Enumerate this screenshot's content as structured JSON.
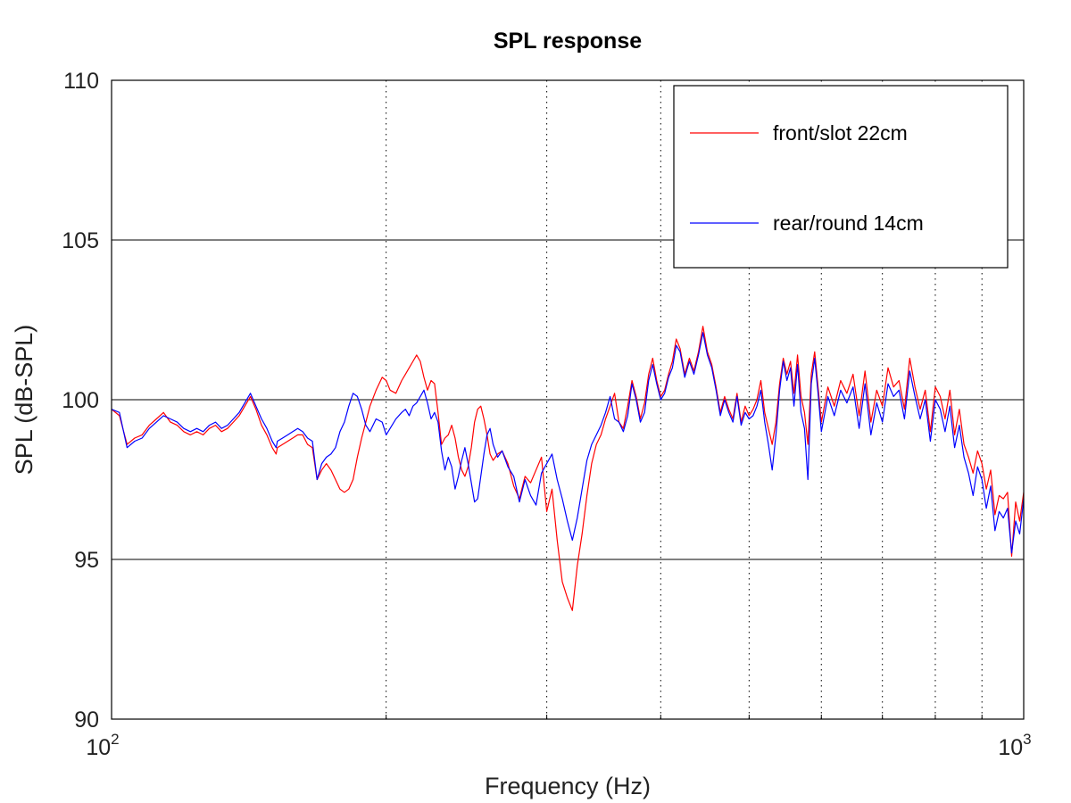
{
  "chart_data": {
    "type": "line",
    "title": "SPL response",
    "xlabel": "Frequency (Hz)",
    "ylabel": "SPL (dB-SPL)",
    "xscale": "log",
    "xlim": [
      100,
      1000
    ],
    "ylim": [
      90,
      110
    ],
    "x_ticks": [
      {
        "base": "10",
        "exp": "2"
      },
      {
        "base": "10",
        "exp": "3"
      }
    ],
    "y_ticks": [
      "90",
      "95",
      "100",
      "105",
      "110"
    ],
    "grid": {
      "y_major": "solid",
      "x_minor": "dotted"
    },
    "legend": "top-right",
    "series": [
      {
        "name": "front/slot 22cm",
        "color": "#ff0000",
        "x": [
          100,
          102,
          104,
          106,
          108,
          110,
          112,
          114,
          116,
          118,
          120,
          122,
          124,
          126,
          128,
          130,
          132,
          134,
          136,
          138,
          140,
          142,
          144,
          146,
          148,
          150,
          151.5,
          152,
          154,
          156,
          158,
          160,
          162,
          164,
          166,
          168,
          170,
          172,
          174,
          176,
          178,
          180,
          182,
          184,
          186,
          188,
          190,
          192,
          195,
          198,
          200,
          202,
          205,
          208,
          210,
          212,
          214,
          216,
          218,
          220,
          222,
          224,
          226,
          228,
          230,
          232,
          234,
          236,
          238,
          240,
          242,
          244,
          246,
          248,
          250,
          252,
          254,
          256,
          258,
          260,
          262,
          265,
          268,
          272,
          276,
          280,
          284,
          288,
          292,
          296,
          300,
          304,
          308,
          312,
          316,
          320,
          324,
          328,
          332,
          336,
          340,
          344,
          348,
          352,
          356,
          360,
          364,
          368,
          372,
          376,
          380,
          384,
          388,
          392,
          396,
          400,
          404,
          408,
          412,
          416,
          420,
          425,
          430,
          435,
          440,
          445,
          450,
          455,
          460,
          465,
          470,
          475,
          480,
          485,
          490,
          495,
          500,
          505,
          510,
          515,
          520,
          525,
          530,
          535,
          540,
          545,
          550,
          555,
          560,
          565,
          570,
          575,
          580,
          585,
          590,
          595,
          600,
          610,
          620,
          630,
          640,
          650,
          660,
          670,
          680,
          690,
          700,
          710,
          720,
          730,
          740,
          750,
          760,
          770,
          780,
          790,
          800,
          810,
          820,
          830,
          840,
          850,
          860,
          870,
          880,
          890,
          900,
          910,
          920,
          930,
          940,
          950,
          960,
          970,
          980,
          990,
          1000
        ],
        "y": [
          99.7,
          99.5,
          98.6,
          98.8,
          98.9,
          99.2,
          99.4,
          99.6,
          99.3,
          99.2,
          99.0,
          98.9,
          99.0,
          98.9,
          99.1,
          99.2,
          99.0,
          99.1,
          99.3,
          99.5,
          99.8,
          100.1,
          99.7,
          99.2,
          98.9,
          98.5,
          98.3,
          98.5,
          98.6,
          98.7,
          98.8,
          98.9,
          98.9,
          98.6,
          98.5,
          97.5,
          97.8,
          98.0,
          97.8,
          97.5,
          97.2,
          97.1,
          97.2,
          97.5,
          98.2,
          98.8,
          99.3,
          99.8,
          100.3,
          100.7,
          100.6,
          100.3,
          100.2,
          100.6,
          100.8,
          101.0,
          101.2,
          101.4,
          101.2,
          100.7,
          100.3,
          100.6,
          100.5,
          99.6,
          98.6,
          98.8,
          98.9,
          99.2,
          98.8,
          98.2,
          97.8,
          97.6,
          97.9,
          98.5,
          99.3,
          99.7,
          99.8,
          99.4,
          98.9,
          98.3,
          98.1,
          98.3,
          98.4,
          98.0,
          97.3,
          96.9,
          97.6,
          97.4,
          97.8,
          98.2,
          96.5,
          97.2,
          95.6,
          94.3,
          93.8,
          93.4,
          94.8,
          95.8,
          97.0,
          98.0,
          98.6,
          98.9,
          99.4,
          99.8,
          100.2,
          99.3,
          99.1,
          99.8,
          100.6,
          100.1,
          99.4,
          99.9,
          100.8,
          101.3,
          100.6,
          100.1,
          100.3,
          100.8,
          101.2,
          101.9,
          101.6,
          100.8,
          101.3,
          100.9,
          101.5,
          102.3,
          101.5,
          101.1,
          100.4,
          99.6,
          100.1,
          99.7,
          99.4,
          100.2,
          99.3,
          99.8,
          99.5,
          99.7,
          100.0,
          100.6,
          99.6,
          99.1,
          98.6,
          99.3,
          100.5,
          101.3,
          100.8,
          101.2,
          100.2,
          101.4,
          100.1,
          99.6,
          98.6,
          100.8,
          101.5,
          100.4,
          99.3,
          100.4,
          99.8,
          100.6,
          100.2,
          100.8,
          99.5,
          100.9,
          99.3,
          100.3,
          99.8,
          101.0,
          100.4,
          100.6,
          99.7,
          101.3,
          100.4,
          99.7,
          100.3,
          99.0,
          100.4,
          100.1,
          99.4,
          100.3,
          98.9,
          99.7,
          98.6,
          98.2,
          97.7,
          98.4,
          98.0,
          97.2,
          97.8,
          96.4,
          97.0,
          96.9,
          97.1,
          95.1,
          96.8,
          96.2,
          97.1
        ]
      },
      {
        "name": "rear/round 14cm",
        "color": "#0000ff",
        "x": [
          100,
          102,
          104,
          106,
          108,
          110,
          112,
          114,
          116,
          118,
          120,
          122,
          124,
          126,
          128,
          130,
          132,
          134,
          136,
          138,
          140,
          142,
          144,
          146,
          148,
          150,
          151.5,
          152,
          154,
          156,
          158,
          160,
          162,
          164,
          166,
          168,
          170,
          172,
          174,
          176,
          178,
          180,
          182,
          184,
          186,
          188,
          190,
          192,
          195,
          198,
          200,
          202,
          205,
          208,
          210,
          212,
          214,
          216,
          218,
          220,
          222,
          224,
          226,
          228,
          230,
          232,
          234,
          236,
          238,
          240,
          242,
          244,
          246,
          248,
          250,
          252,
          254,
          256,
          258,
          260,
          262,
          265,
          268,
          272,
          276,
          280,
          284,
          288,
          292,
          296,
          300,
          304,
          308,
          312,
          316,
          320,
          324,
          328,
          332,
          336,
          340,
          344,
          348,
          352,
          356,
          360,
          364,
          368,
          372,
          376,
          380,
          384,
          388,
          392,
          396,
          400,
          404,
          408,
          412,
          416,
          420,
          425,
          430,
          435,
          440,
          445,
          450,
          455,
          460,
          465,
          470,
          475,
          480,
          485,
          490,
          495,
          500,
          505,
          510,
          515,
          520,
          525,
          530,
          535,
          540,
          545,
          550,
          555,
          560,
          565,
          570,
          575,
          580,
          585,
          590,
          595,
          600,
          610,
          620,
          630,
          640,
          650,
          660,
          670,
          680,
          690,
          700,
          710,
          720,
          730,
          740,
          750,
          760,
          770,
          780,
          790,
          800,
          810,
          820,
          830,
          840,
          850,
          860,
          870,
          880,
          890,
          900,
          910,
          920,
          930,
          940,
          950,
          960,
          970,
          980,
          990,
          1000
        ],
        "y": [
          99.7,
          99.6,
          98.5,
          98.7,
          98.8,
          99.1,
          99.3,
          99.5,
          99.4,
          99.3,
          99.1,
          99.0,
          99.1,
          99.0,
          99.2,
          99.3,
          99.1,
          99.2,
          99.4,
          99.6,
          99.9,
          100.2,
          99.8,
          99.4,
          99.1,
          98.7,
          98.5,
          98.7,
          98.8,
          98.9,
          99.0,
          99.1,
          99.0,
          98.8,
          98.7,
          97.5,
          98.0,
          98.2,
          98.3,
          98.5,
          99.0,
          99.3,
          99.8,
          100.2,
          100.1,
          99.7,
          99.2,
          99.0,
          99.4,
          99.3,
          98.9,
          99.1,
          99.4,
          99.6,
          99.7,
          99.5,
          99.8,
          99.9,
          100.1,
          100.3,
          99.9,
          99.4,
          99.6,
          99.3,
          98.4,
          97.8,
          98.2,
          97.9,
          97.2,
          97.6,
          98.1,
          98.5,
          98.0,
          97.4,
          96.8,
          96.9,
          97.6,
          98.3,
          98.9,
          99.1,
          98.6,
          98.2,
          98.4,
          97.9,
          97.6,
          96.8,
          97.5,
          97.0,
          96.7,
          97.7,
          98.0,
          98.3,
          97.5,
          96.9,
          96.2,
          95.6,
          96.3,
          97.2,
          98.1,
          98.6,
          98.9,
          99.2,
          99.6,
          100.1,
          99.4,
          99.3,
          99.0,
          99.5,
          100.5,
          100.0,
          99.3,
          99.6,
          100.6,
          101.1,
          100.5,
          100.0,
          100.2,
          100.7,
          101.0,
          101.7,
          101.5,
          100.7,
          101.2,
          100.8,
          101.4,
          102.1,
          101.4,
          101.0,
          100.3,
          99.5,
          100.0,
          99.6,
          99.3,
          100.1,
          99.2,
          99.6,
          99.4,
          99.5,
          99.8,
          100.3,
          99.3,
          98.6,
          97.8,
          98.9,
          100.3,
          101.2,
          100.6,
          101.0,
          99.8,
          101.1,
          99.6,
          99.1,
          97.5,
          100.5,
          101.3,
          100.2,
          99.0,
          100.1,
          99.5,
          100.3,
          99.9,
          100.4,
          99.1,
          100.5,
          98.9,
          99.9,
          99.3,
          100.5,
          100.1,
          100.3,
          99.4,
          100.9,
          100.1,
          99.4,
          100.0,
          98.7,
          100.0,
          99.7,
          99.0,
          99.8,
          98.5,
          99.2,
          98.2,
          97.7,
          97.0,
          97.9,
          97.5,
          96.6,
          97.3,
          95.9,
          96.5,
          96.3,
          96.6,
          95.2,
          96.2,
          95.8,
          96.9
        ]
      }
    ]
  }
}
